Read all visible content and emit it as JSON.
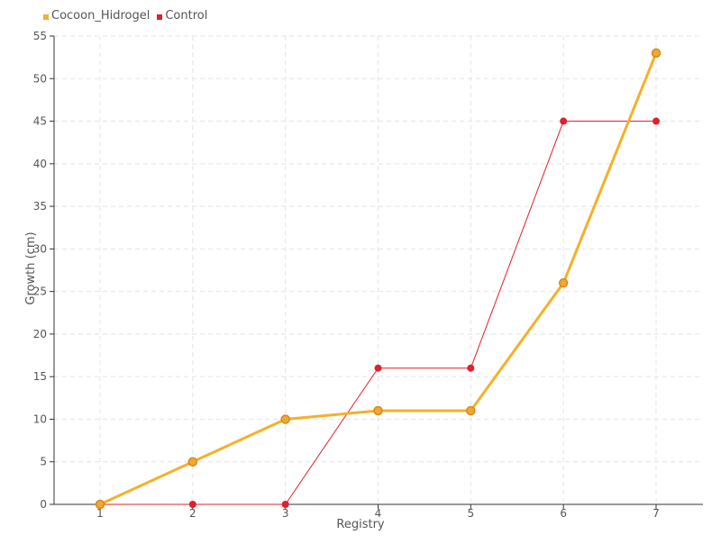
{
  "chart_data": {
    "type": "line",
    "title": "",
    "xlabel": "Registry",
    "ylabel": "Growth (cm)",
    "x": [
      1,
      2,
      3,
      4,
      5,
      6,
      7
    ],
    "x_tick_labels": [
      "1",
      "2",
      "3",
      "4",
      "5",
      "6",
      "7"
    ],
    "ylim": [
      0,
      55
    ],
    "y_ticks": [
      0,
      5,
      10,
      15,
      20,
      25,
      30,
      35,
      40,
      45,
      50,
      55
    ],
    "grid": true,
    "legend_placement": "top-left",
    "series": [
      {
        "name": "Cocoon_Hidrogel",
        "color": "#f5b02a",
        "marker_fill": "#f0a830",
        "marker_stroke": "#d68a1c",
        "values": [
          0,
          5,
          10,
          11,
          11,
          26,
          53
        ]
      },
      {
        "name": "Control",
        "color": "#e0202a",
        "marker_fill": "#e0202a",
        "marker_stroke": "#e0202a",
        "values": [
          0,
          0,
          0,
          16,
          16,
          45,
          45
        ]
      }
    ]
  }
}
